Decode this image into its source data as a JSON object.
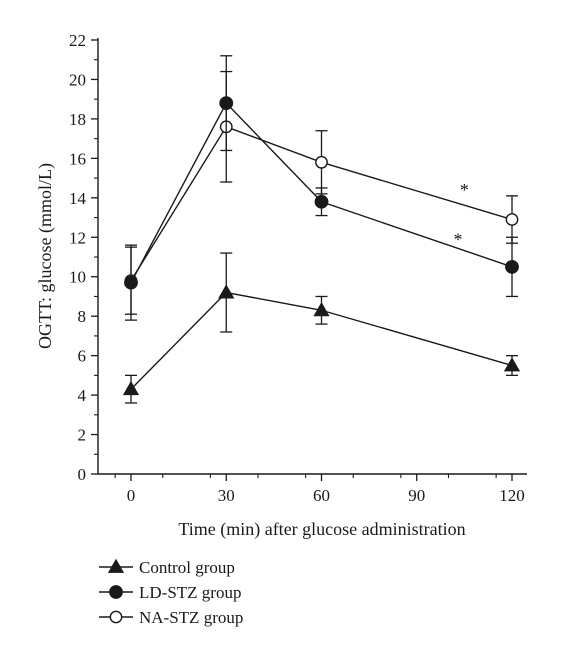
{
  "chart_data": {
    "type": "line",
    "title": "",
    "xlabel": "Time (min) after glucose administration",
    "ylabel": "OGTT: glucose (mmol/L)",
    "x": [
      0,
      30,
      60,
      120
    ],
    "xticks": [
      0,
      30,
      60,
      90,
      120
    ],
    "xlim": [
      -10,
      125
    ],
    "yticks": [
      0,
      2,
      4,
      6,
      8,
      10,
      12,
      14,
      16,
      18,
      20,
      22
    ],
    "ylim": [
      0,
      22
    ],
    "grid": false,
    "legend_position": "bottom-left",
    "series": [
      {
        "name": "Control group",
        "marker": "filled-triangle",
        "values": [
          4.3,
          9.2,
          8.3,
          5.5
        ],
        "error": [
          0.7,
          2.0,
          0.7,
          0.5
        ]
      },
      {
        "name": "LD-STZ group",
        "marker": "filled-circle",
        "values": [
          9.7,
          18.8,
          13.8,
          10.5
        ],
        "error": [
          1.9,
          2.4,
          0.7,
          1.5
        ]
      },
      {
        "name": "NA-STZ group",
        "marker": "open-circle",
        "values": [
          9.8,
          17.6,
          15.8,
          12.9
        ],
        "error": [
          1.7,
          2.8,
          1.6,
          1.2
        ]
      }
    ],
    "annotations": [
      {
        "text": "*",
        "x": 105,
        "y": 14.5
      },
      {
        "text": "*",
        "x": 103,
        "y": 12.0
      }
    ]
  }
}
